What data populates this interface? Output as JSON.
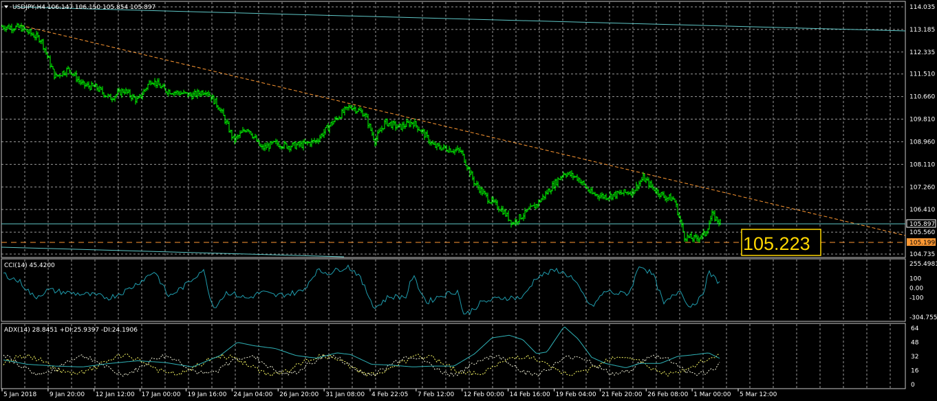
{
  "colors": {
    "background": "#000000",
    "grid": "#c8c8c8",
    "candles": "#00ff00",
    "resistance_line": "#5fc8c8",
    "trend_line": "#ff9933",
    "cci_line": "#1f9dae",
    "adx_line": "#2fb3b8",
    "di_plus": "#ffff66",
    "di_minus": "#f5f5dc",
    "price_box": "#ffd700"
  },
  "header": {
    "symbol_line": "USDJPY,H4  106.147 106.150 105.854 105.897",
    "menu_icon": "triangle-down-icon"
  },
  "price_panel": {
    "y_ticks": [
      "114.035",
      "113.185",
      "112.335",
      "111.510",
      "110.660",
      "109.810",
      "108.960",
      "108.110",
      "107.260",
      "106.410",
      "105.560",
      "104.735"
    ],
    "current_price": "105.897",
    "level_price": "105.199",
    "big_label": "105.223",
    "ylim": [
      104.735,
      114.035
    ]
  },
  "cci_panel": {
    "title": "CCI(14) 45.4200",
    "y_ticks": [
      "255.4981",
      "100",
      "0.00",
      "-100",
      "-304.755"
    ]
  },
  "adx_panel": {
    "title": "ADX(14) 28.8451 +DI:25.9397 -DI:24.1906",
    "y_ticks": [
      "64",
      "48",
      "32",
      "16",
      "0"
    ]
  },
  "time_axis": {
    "labels": [
      "5 Jan 2018",
      "9 Jan 20:00",
      "12 Jan 12:00",
      "17 Jan 00:00",
      "19 Jan 16:00",
      "24 Jan 04:00",
      "26 Jan 20:00",
      "31 Jan 08:00",
      "4 Feb 22:05",
      "7 Feb 12:00",
      "12 Feb 00:00",
      "14 Feb 16:00",
      "19 Feb 04:00",
      "21 Feb 20:00",
      "26 Feb 08:00",
      "1 Mar 00:00",
      "5 Mar 12:00"
    ]
  },
  "chart_data": {
    "type": "candlestick",
    "instrument": "USDJPY",
    "timeframe": "H4",
    "last_bar": {
      "open": 106.147,
      "high": 106.15,
      "low": 105.854,
      "close": 105.897
    },
    "close_path": [
      [
        0,
        113.3
      ],
      [
        30,
        113.25
      ],
      [
        60,
        112.8
      ],
      [
        80,
        111.4
      ],
      [
        100,
        111.7
      ],
      [
        120,
        111.1
      ],
      [
        140,
        111.0
      ],
      [
        160,
        110.6
      ],
      [
        180,
        110.9
      ],
      [
        200,
        110.5
      ],
      [
        220,
        111.3
      ],
      [
        240,
        110.9
      ],
      [
        260,
        110.8
      ],
      [
        280,
        110.7
      ],
      [
        300,
        110.9
      ],
      [
        320,
        110.2
      ],
      [
        340,
        109.0
      ],
      [
        360,
        109.5
      ],
      [
        380,
        108.7
      ],
      [
        400,
        108.9
      ],
      [
        420,
        108.8
      ],
      [
        440,
        108.85
      ],
      [
        460,
        109.0
      ],
      [
        480,
        109.6
      ],
      [
        500,
        110.1
      ],
      [
        510,
        110.3
      ],
      [
        530,
        110.0
      ],
      [
        545,
        109.0
      ],
      [
        560,
        109.7
      ],
      [
        580,
        109.5
      ],
      [
        600,
        109.7
      ],
      [
        615,
        109.3
      ],
      [
        630,
        108.8
      ],
      [
        650,
        108.7
      ],
      [
        670,
        108.6
      ],
      [
        690,
        107.4
      ],
      [
        710,
        106.8
      ],
      [
        730,
        106.4
      ],
      [
        745,
        105.9
      ],
      [
        760,
        106.2
      ],
      [
        780,
        106.6
      ],
      [
        800,
        107.2
      ],
      [
        820,
        107.8
      ],
      [
        840,
        107.6
      ],
      [
        860,
        107.0
      ],
      [
        880,
        106.9
      ],
      [
        900,
        107.0
      ],
      [
        920,
        107.1
      ],
      [
        935,
        107.6
      ],
      [
        950,
        107.2
      ],
      [
        965,
        106.9
      ],
      [
        980,
        106.8
      ],
      [
        995,
        105.4
      ],
      [
        1010,
        105.3
      ],
      [
        1025,
        105.5
      ],
      [
        1035,
        106.2
      ],
      [
        1048,
        105.9
      ]
    ],
    "cci_path": [
      [
        5,
        150
      ],
      [
        30,
        60
      ],
      [
        50,
        -100
      ],
      [
        70,
        -20
      ],
      [
        100,
        -50
      ],
      [
        130,
        -70
      ],
      [
        160,
        -100
      ],
      [
        185,
        -20
      ],
      [
        210,
        100
      ],
      [
        225,
        180
      ],
      [
        245,
        -90
      ],
      [
        270,
        30
      ],
      [
        295,
        200
      ],
      [
        310,
        -210
      ],
      [
        330,
        -40
      ],
      [
        360,
        -110
      ],
      [
        380,
        -40
      ],
      [
        400,
        -80
      ],
      [
        420,
        -60
      ],
      [
        440,
        -30
      ],
      [
        460,
        180
      ],
      [
        480,
        160
      ],
      [
        505,
        230
      ],
      [
        520,
        150
      ],
      [
        545,
        -210
      ],
      [
        565,
        -90
      ],
      [
        590,
        -90
      ],
      [
        600,
        130
      ],
      [
        620,
        -150
      ],
      [
        640,
        -80
      ],
      [
        665,
        -30
      ],
      [
        675,
        -290
      ],
      [
        700,
        -150
      ],
      [
        730,
        -100
      ],
      [
        760,
        -100
      ],
      [
        780,
        120
      ],
      [
        810,
        190
      ],
      [
        830,
        120
      ],
      [
        860,
        -200
      ],
      [
        880,
        -30
      ],
      [
        900,
        -60
      ],
      [
        915,
        -50
      ],
      [
        930,
        250
      ],
      [
        950,
        130
      ],
      [
        965,
        -170
      ],
      [
        990,
        -10
      ],
      [
        1000,
        -200
      ],
      [
        1020,
        -100
      ],
      [
        1030,
        160
      ],
      [
        1048,
        45
      ]
    ],
    "adx_path": [
      [
        5,
        28
      ],
      [
        40,
        23
      ],
      [
        80,
        21
      ],
      [
        120,
        20
      ],
      [
        160,
        24
      ],
      [
        200,
        27
      ],
      [
        240,
        25
      ],
      [
        280,
        20
      ],
      [
        320,
        33
      ],
      [
        345,
        48
      ],
      [
        370,
        44
      ],
      [
        400,
        41
      ],
      [
        430,
        33
      ],
      [
        460,
        30
      ],
      [
        490,
        36
      ],
      [
        510,
        34
      ],
      [
        540,
        23
      ],
      [
        570,
        22
      ],
      [
        600,
        20
      ],
      [
        630,
        21
      ],
      [
        660,
        21
      ],
      [
        690,
        35
      ],
      [
        715,
        53
      ],
      [
        740,
        56
      ],
      [
        760,
        51
      ],
      [
        780,
        35
      ],
      [
        795,
        37
      ],
      [
        820,
        66
      ],
      [
        840,
        52
      ],
      [
        860,
        31
      ],
      [
        880,
        24
      ],
      [
        910,
        19
      ],
      [
        930,
        24
      ],
      [
        960,
        24
      ],
      [
        985,
        32
      ],
      [
        1010,
        34
      ],
      [
        1030,
        36
      ],
      [
        1048,
        29
      ]
    ],
    "adx_ylim": [
      0,
      64
    ],
    "cci_ylim": [
      -304.755,
      255.4981
    ]
  }
}
